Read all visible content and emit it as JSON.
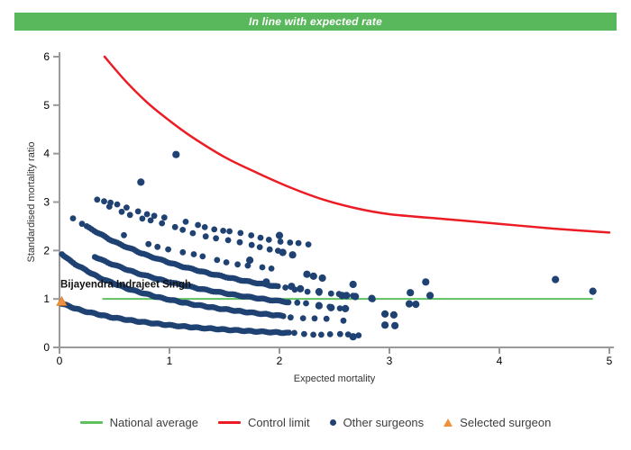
{
  "banner": {
    "text": "In line with expected rate",
    "bg": "#59b75c",
    "fg": "#ffffff"
  },
  "colors": {
    "dot": "#1f4273",
    "control_limit": "#ec1c24",
    "national_average": "#5fc05f",
    "selected_surgeon": "#f0913b",
    "axis": "#9a9a9a",
    "tick_label": "#000000",
    "axis_title": "#333333",
    "surgeon_label": "#111111"
  },
  "chart_data": {
    "type": "scatter",
    "title": "In line with expected rate",
    "xlabel": "Expected mortality",
    "ylabel": "Standardised mortality ratio",
    "xlim": [
      0,
      5
    ],
    "ylim": [
      0,
      6
    ],
    "x_ticks": [
      "0",
      "1",
      "2",
      "3",
      "4",
      "5"
    ],
    "y_ticks": [
      "0",
      "1",
      "2",
      "3",
      "4",
      "5",
      "6"
    ],
    "grid": false,
    "national_average": {
      "value": 1.0,
      "x_start": 0.39,
      "x_end": 4.85
    },
    "control_limit": {
      "points": [
        [
          0.41,
          6.0
        ],
        [
          0.6,
          5.5
        ],
        [
          0.8,
          5.05
        ],
        [
          1.0,
          4.68
        ],
        [
          1.2,
          4.35
        ],
        [
          1.5,
          3.93
        ],
        [
          1.8,
          3.6
        ],
        [
          2.1,
          3.3
        ],
        [
          2.4,
          3.05
        ],
        [
          2.7,
          2.87
        ],
        [
          3.0,
          2.75
        ],
        [
          3.5,
          2.65
        ],
        [
          4.0,
          2.55
        ],
        [
          4.5,
          2.45
        ],
        [
          5.0,
          2.37
        ]
      ]
    },
    "selected_surgeon": {
      "name": "Bijayendra Indrajeet Singh",
      "expected_mortality": 0.02,
      "smr": 0.95
    },
    "other_surgeons": {
      "note": "dense hyperbolic bands smr = k/(E+c) of individual surgeon dots, plus sparse chains and isolated points",
      "bands": [
        {
          "k": 0.92,
          "c": 1.0,
          "segments": [
            {
              "from": 0.02,
              "to": 2.1,
              "step": 0.018,
              "style": "dense"
            },
            {
              "from": 2.14,
              "to": 2.72,
              "step": 0.09,
              "style": "sparse"
            }
          ]
        },
        {
          "k": 1.97,
          "c": 1.0,
          "segments": [
            {
              "from": 0.02,
              "to": 2.05,
              "step": 0.018,
              "style": "dense"
            },
            {
              "from": 2.1,
              "to": 2.62,
              "step": 0.09,
              "style": "sparse"
            }
          ]
        },
        {
          "k": 3.28,
          "c": 1.43,
          "segments": [
            {
              "from": 0.32,
              "to": 2.1,
              "step": 0.02,
              "style": "dense"
            },
            {
              "from": 2.16,
              "to": 2.6,
              "step": 0.1,
              "style": "sparse"
            }
          ]
        },
        {
          "k": 4.39,
          "c": 1.51,
          "segments": [
            {
              "from": 0.13,
              "to": 0.22,
              "step": 0.07,
              "style": "sparse"
            },
            {
              "from": 0.25,
              "to": 2.0,
              "step": 0.02,
              "style": "dense"
            },
            {
              "from": 2.06,
              "to": 2.85,
              "step": 0.1,
              "style": "sparse"
            }
          ]
        },
        {
          "k": 13.0,
          "c": 3.9,
          "segments": [
            {
              "from": 0.34,
              "to": 2.32,
              "step": 0.085,
              "style": "sparse"
            }
          ]
        },
        {
          "k": 10.0,
          "c": 3.0,
          "segments": [
            {
              "from": 0.45,
              "to": 2.2,
              "step": 0.095,
              "style": "sparse"
            }
          ]
        },
        {
          "k": 7.2,
          "c": 2.55,
          "segments": [
            {
              "from": 0.58,
              "to": 1.95,
              "step": 0.105,
              "style": "sparse"
            }
          ]
        }
      ],
      "points": [
        [
          0.74,
          3.41
        ],
        [
          1.06,
          3.98
        ],
        [
          1.73,
          1.8
        ],
        [
          2.0,
          2.31
        ],
        [
          2.03,
          1.96
        ],
        [
          2.12,
          1.91
        ],
        [
          1.88,
          1.35
        ],
        [
          2.11,
          1.26
        ],
        [
          2.19,
          1.21
        ],
        [
          2.25,
          1.51
        ],
        [
          2.31,
          1.47
        ],
        [
          2.39,
          1.43
        ],
        [
          2.36,
          1.15
        ],
        [
          2.57,
          1.07
        ],
        [
          2.61,
          1.07
        ],
        [
          2.67,
          1.3
        ],
        [
          2.69,
          1.05
        ],
        [
          2.84,
          1.01
        ],
        [
          2.36,
          0.86
        ],
        [
          2.47,
          0.82
        ],
        [
          2.6,
          0.8
        ],
        [
          2.67,
          0.22
        ],
        [
          2.96,
          0.69
        ],
        [
          3.04,
          0.67
        ],
        [
          2.96,
          0.46
        ],
        [
          3.05,
          0.45
        ],
        [
          3.19,
          1.13
        ],
        [
          3.33,
          1.35
        ],
        [
          3.37,
          1.07
        ],
        [
          3.18,
          0.9
        ],
        [
          3.24,
          0.89
        ],
        [
          4.51,
          1.4
        ],
        [
          4.85,
          1.16
        ]
      ]
    }
  },
  "legend": {
    "items": [
      {
        "label": "National average",
        "marker": "line",
        "color": "#5fc05f"
      },
      {
        "label": "Control limit",
        "marker": "line",
        "color": "#ec1c24"
      },
      {
        "label": "Other surgeons",
        "marker": "dot",
        "color": "#1f4273"
      },
      {
        "label": "Selected surgeon",
        "marker": "triangle",
        "color": "#f0913b"
      }
    ]
  }
}
